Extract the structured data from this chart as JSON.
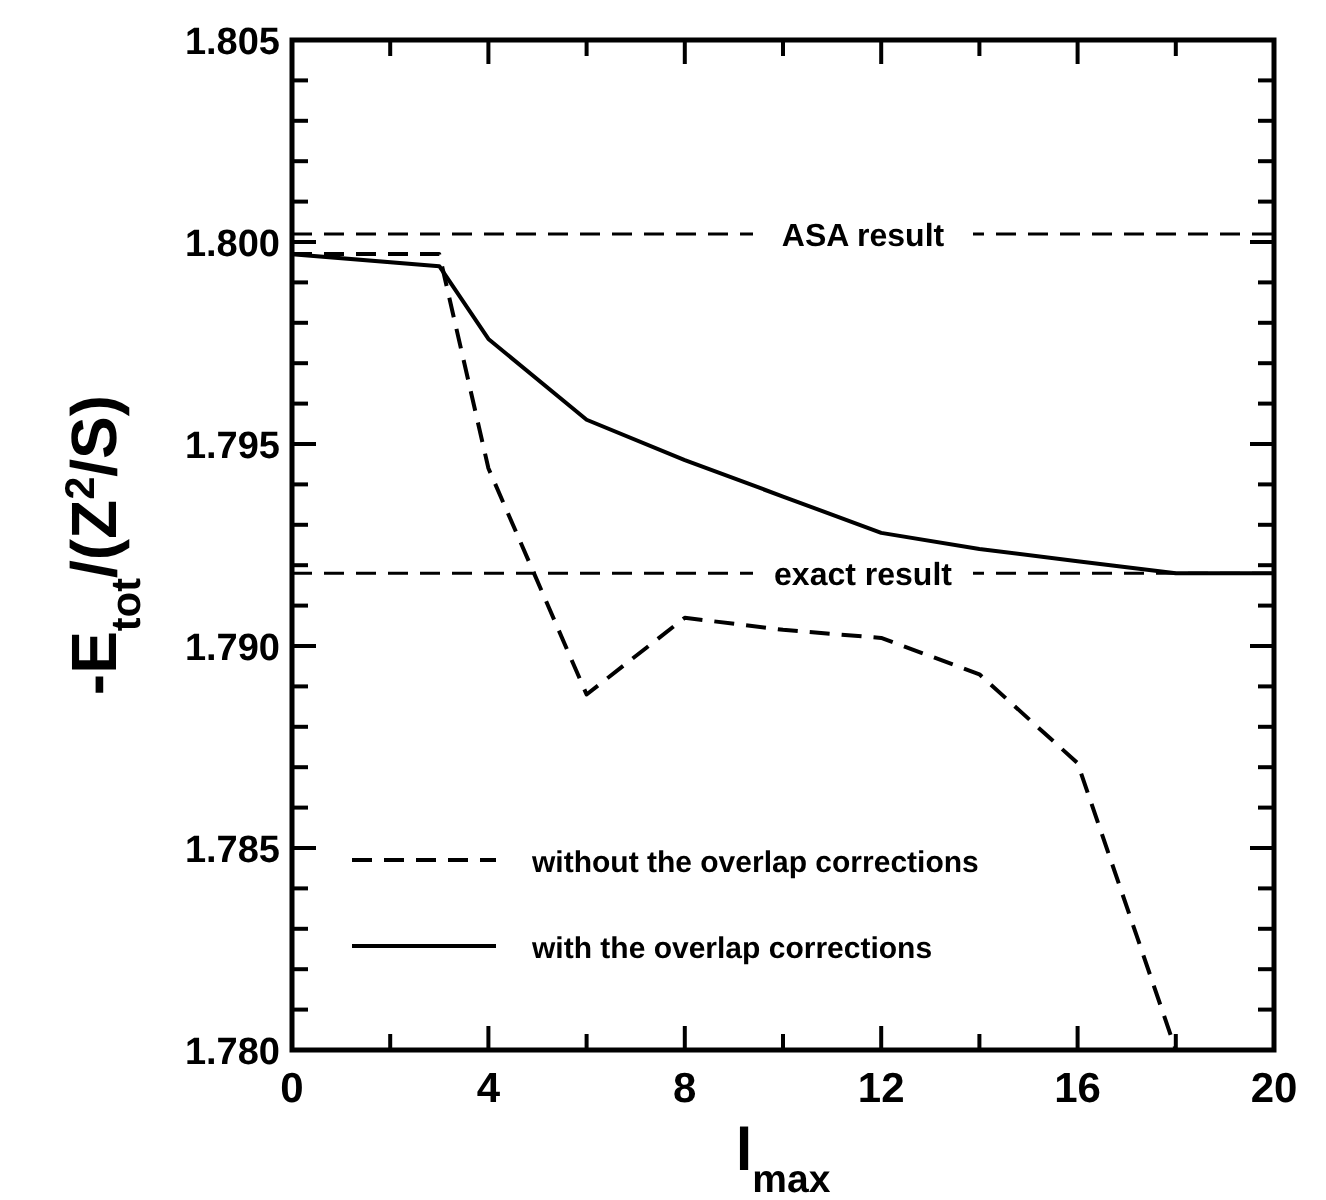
{
  "chart_data": {
    "type": "line",
    "xlabel": "l$_{max}$",
    "ylabel": "-E$_{tot}$/(Z$^{2}$/S)",
    "x": [
      0,
      3,
      4,
      6,
      8,
      10,
      12,
      14,
      16,
      18,
      20
    ],
    "series": [
      {
        "name": "without the overlap corrections",
        "color": "#000000",
        "line_style": "dashed",
        "x": [
          0,
          3,
          4,
          6,
          8,
          10,
          12,
          14,
          16,
          18
        ],
        "values": [
          1.7997,
          1.7997,
          1.7944,
          1.7888,
          1.7907,
          1.7904,
          1.7902,
          1.7893,
          1.7871,
          1.78
        ]
      },
      {
        "name": "with the overlap corrections",
        "color": "#000000",
        "line_style": "solid",
        "values": [
          1.7997,
          1.7994,
          1.7976,
          1.7956,
          1.7946,
          1.7937,
          1.7928,
          1.7924,
          1.7921,
          1.7918,
          1.7918
        ]
      }
    ],
    "xlim": [
      0,
      20
    ],
    "xticks": [
      0,
      {
        "value": 2,
        "label": null
      },
      4,
      {
        "value": 6,
        "label": null
      },
      8,
      {
        "value": 10,
        "label": null
      },
      12,
      {
        "value": 14,
        "label": null
      },
      16,
      {
        "value": 18,
        "label": null
      },
      20
    ],
    "ylim": [
      1.78,
      1.805
    ],
    "yticks": [
      {
        "value": 1.78,
        "label": "1.780"
      },
      {
        "value": 1.781,
        "label": null
      },
      {
        "value": 1.782,
        "label": null
      },
      {
        "value": 1.783,
        "label": null
      },
      {
        "value": 1.784,
        "label": null
      },
      {
        "value": 1.785,
        "label": "1.785"
      },
      {
        "value": 1.786,
        "label": null
      },
      {
        "value": 1.787,
        "label": null
      },
      {
        "value": 1.788,
        "label": null
      },
      {
        "value": 1.789,
        "label": null
      },
      {
        "value": 1.79,
        "label": "1.790"
      },
      {
        "value": 1.791,
        "label": null
      },
      {
        "value": 1.792,
        "label": null
      },
      {
        "value": 1.793,
        "label": null
      },
      {
        "value": 1.794,
        "label": null
      },
      {
        "value": 1.795,
        "label": "1.795"
      },
      {
        "value": 1.796,
        "label": null
      },
      {
        "value": 1.797,
        "label": null
      },
      {
        "value": 1.798,
        "label": null
      },
      {
        "value": 1.799,
        "label": null
      },
      {
        "value": 1.8,
        "label": "1.800"
      },
      {
        "value": 1.801,
        "label": null
      },
      {
        "value": 1.802,
        "label": null
      },
      {
        "value": 1.803,
        "label": null
      },
      {
        "value": 1.804,
        "label": null
      },
      {
        "value": 1.805,
        "label": "1.805"
      }
    ],
    "ref_lines": [
      {
        "axis": "y",
        "value": 1.8002,
        "label": "ASA result",
        "line_style": "dashed",
        "color": "#000000"
      },
      {
        "axis": "y",
        "value": 1.7918,
        "label": "exact result",
        "line_style": "dashed",
        "color": "#000000"
      }
    ],
    "legend": "bottom left",
    "grid": false,
    "marker": "none"
  }
}
